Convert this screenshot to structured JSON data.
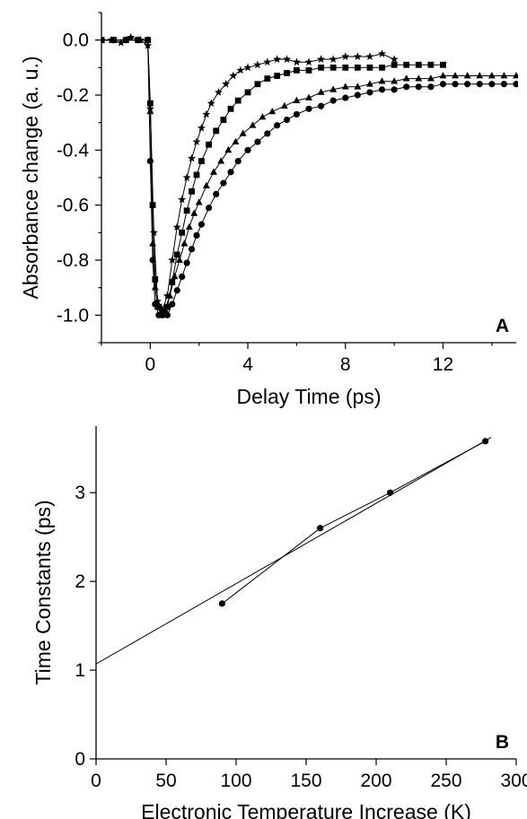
{
  "chart_data": [
    {
      "type": "line",
      "panel_label": "A",
      "xlabel": "Delay Time (ps)",
      "ylabel": "Absorbance change (a. u.)",
      "xlim": [
        -2,
        15
      ],
      "ylim": [
        -1.1,
        0.1
      ],
      "x_ticks": [
        0,
        4,
        8,
        12
      ],
      "x_tick_labels": [
        "0",
        "4",
        "8",
        "12"
      ],
      "y_ticks": [
        0.0,
        -0.2,
        -0.4,
        -0.6,
        -0.8,
        -1.0
      ],
      "y_tick_labels": [
        "0.0",
        "-0.2",
        "-0.4",
        "-0.6",
        "-0.8",
        "-1.0"
      ],
      "grid": false,
      "series": [
        {
          "marker": "star",
          "x": [
            -2.0,
            -1.6,
            -1.2,
            -0.8,
            -0.4,
            -0.1,
            0.0,
            0.15,
            0.3,
            0.5,
            0.7,
            0.9,
            1.1,
            1.3,
            1.5,
            1.7,
            1.9,
            2.1,
            2.3,
            2.5,
            2.8,
            3.1,
            3.4,
            3.7,
            4.0,
            4.4,
            4.8,
            5.2,
            5.6,
            6.0,
            6.5,
            7.0,
            7.5,
            8.0,
            8.5,
            9.0,
            9.5,
            10.0
          ],
          "y": [
            0.0,
            0.0,
            -0.01,
            0.01,
            0.0,
            -0.02,
            -0.25,
            -0.7,
            -0.95,
            -0.98,
            -0.93,
            -0.8,
            -0.68,
            -0.58,
            -0.5,
            -0.43,
            -0.37,
            -0.32,
            -0.27,
            -0.23,
            -0.19,
            -0.16,
            -0.13,
            -0.11,
            -0.1,
            -0.09,
            -0.08,
            -0.07,
            -0.07,
            -0.08,
            -0.08,
            -0.07,
            -0.07,
            -0.06,
            -0.06,
            -0.06,
            -0.05,
            -0.07
          ]
        },
        {
          "marker": "square",
          "x": [
            -2.0,
            -1.5,
            -1.0,
            -0.5,
            -0.1,
            0.0,
            0.1,
            0.2,
            0.35,
            0.5,
            0.7,
            0.9,
            1.1,
            1.3,
            1.5,
            1.7,
            1.9,
            2.1,
            2.4,
            2.7,
            3.0,
            3.3,
            3.6,
            4.0,
            4.4,
            4.8,
            5.2,
            5.6,
            6.0,
            6.5,
            7.0,
            7.5,
            8.0,
            8.5,
            9.0,
            9.5,
            10.0,
            10.5,
            11.0,
            11.5,
            12.0
          ],
          "y": [
            0.0,
            0.0,
            0.0,
            0.0,
            0.0,
            -0.23,
            -0.6,
            -0.87,
            -0.97,
            -0.99,
            -0.97,
            -0.88,
            -0.78,
            -0.7,
            -0.62,
            -0.55,
            -0.49,
            -0.44,
            -0.38,
            -0.33,
            -0.29,
            -0.25,
            -0.22,
            -0.19,
            -0.16,
            -0.14,
            -0.13,
            -0.12,
            -0.11,
            -0.11,
            -0.1,
            -0.1,
            -0.1,
            -0.1,
            -0.1,
            -0.1,
            -0.09,
            -0.09,
            -0.09,
            -0.09,
            -0.09
          ]
        },
        {
          "marker": "triangle",
          "x": [
            -2.0,
            -1.5,
            -1.0,
            -0.5,
            -0.1,
            0.0,
            0.1,
            0.2,
            0.3,
            0.45,
            0.6,
            0.8,
            1.0,
            1.2,
            1.4,
            1.6,
            1.8,
            2.0,
            2.3,
            2.6,
            2.9,
            3.2,
            3.5,
            3.8,
            4.2,
            4.6,
            5.0,
            5.5,
            6.0,
            6.5,
            7.0,
            7.5,
            8.0,
            8.5,
            9.0,
            9.5,
            10.0,
            10.5,
            11.0,
            11.5,
            12.0,
            12.5,
            13.0,
            13.5,
            14.0,
            14.5,
            15.0
          ],
          "y": [
            0.0,
            0.0,
            0.0,
            0.0,
            0.0,
            -0.26,
            -0.74,
            -0.9,
            -0.97,
            -1.0,
            -0.98,
            -0.93,
            -0.86,
            -0.8,
            -0.74,
            -0.68,
            -0.63,
            -0.59,
            -0.53,
            -0.48,
            -0.44,
            -0.4,
            -0.37,
            -0.34,
            -0.31,
            -0.28,
            -0.26,
            -0.24,
            -0.22,
            -0.21,
            -0.19,
            -0.18,
            -0.17,
            -0.17,
            -0.16,
            -0.15,
            -0.15,
            -0.14,
            -0.14,
            -0.14,
            -0.13,
            -0.13,
            -0.13,
            -0.13,
            -0.13,
            -0.13,
            -0.13
          ]
        },
        {
          "marker": "circle",
          "x": [
            -2.0,
            -1.5,
            -1.0,
            -0.5,
            -0.1,
            0.0,
            0.1,
            0.2,
            0.35,
            0.5,
            0.7,
            0.9,
            1.1,
            1.3,
            1.5,
            1.7,
            1.9,
            2.1,
            2.4,
            2.7,
            3.0,
            3.3,
            3.6,
            4.0,
            4.4,
            4.8,
            5.2,
            5.6,
            6.0,
            6.5,
            7.0,
            7.5,
            8.0,
            8.5,
            9.0,
            9.5,
            10.0,
            10.5,
            11.0,
            11.5,
            12.0,
            12.5,
            13.0,
            13.5,
            14.0,
            14.5,
            15.0
          ],
          "y": [
            0.0,
            0.0,
            0.0,
            0.0,
            0.0,
            -0.44,
            -0.8,
            -0.96,
            -1.0,
            -1.0,
            -1.0,
            -0.96,
            -0.91,
            -0.86,
            -0.81,
            -0.76,
            -0.71,
            -0.67,
            -0.61,
            -0.56,
            -0.52,
            -0.48,
            -0.44,
            -0.4,
            -0.37,
            -0.34,
            -0.31,
            -0.29,
            -0.27,
            -0.25,
            -0.24,
            -0.22,
            -0.21,
            -0.2,
            -0.19,
            -0.18,
            -0.18,
            -0.17,
            -0.17,
            -0.17,
            -0.16,
            -0.16,
            -0.16,
            -0.16,
            -0.16,
            -0.16,
            -0.16
          ]
        }
      ]
    },
    {
      "type": "scatter",
      "panel_label": "B",
      "xlabel": "Electronic Temperature Increase (K)",
      "ylabel": "Time Constants (ps)",
      "xlim": [
        0,
        300
      ],
      "ylim": [
        0,
        3.75
      ],
      "x_ticks": [
        0,
        50,
        100,
        150,
        200,
        250,
        300
      ],
      "x_tick_labels": [
        "0",
        "50",
        "100",
        "150",
        "200",
        "250",
        "300"
      ],
      "y_ticks": [
        0,
        1,
        2,
        3
      ],
      "y_tick_labels": [
        "0",
        "1",
        "2",
        "3"
      ],
      "grid": false,
      "series": [
        {
          "marker": "circle",
          "x": [
            90,
            160,
            210,
            278
          ],
          "y": [
            1.75,
            2.6,
            3.0,
            3.58
          ]
        }
      ],
      "fit_line": {
        "intercept": 1.07,
        "slope": 0.00905
      }
    }
  ]
}
